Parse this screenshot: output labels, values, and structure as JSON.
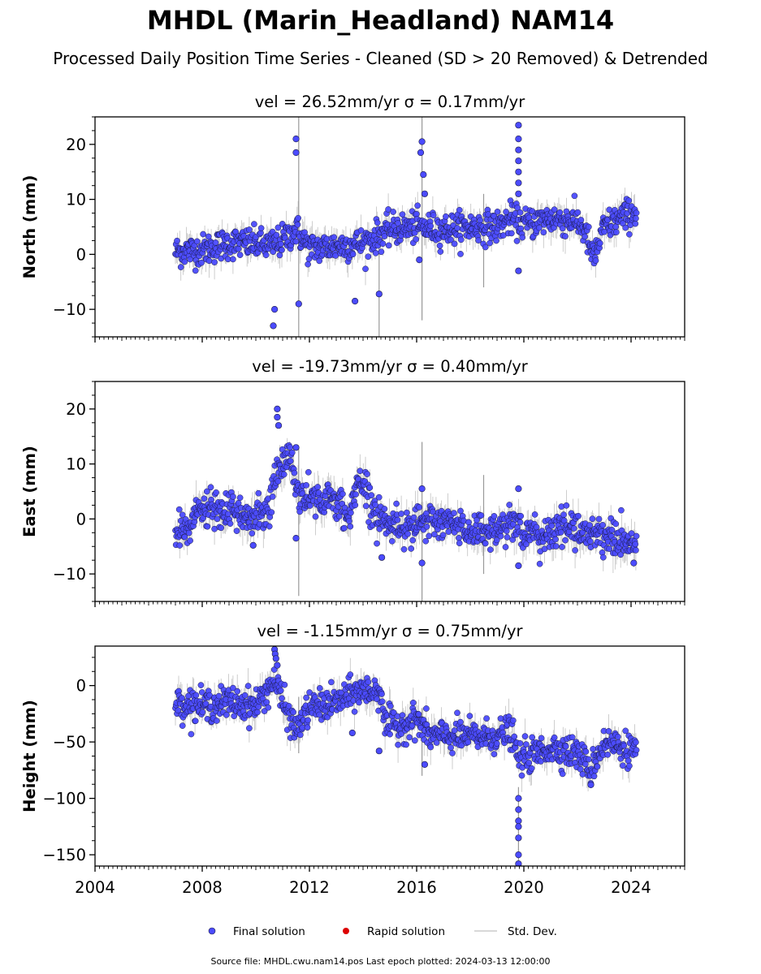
{
  "figure": {
    "title": "MHDL (Marin_Headland) NAM14",
    "subtitle": "Processed Daily Position Time Series - Cleaned (SD > 20 Removed) & Detrended",
    "footer": "Source file: MHDL.cwu.nam14.pos  Last epoch plotted: 2024-03-13 12:00:00"
  },
  "colors": {
    "final": "#4b4bff",
    "final_edge": "#1a1a40",
    "rapid": "#dd0000",
    "stddev": "#aaaaaa"
  },
  "legend": {
    "placement": "bottom-center",
    "items": [
      {
        "label": "Final solution",
        "marker": "circle",
        "color": "#4b4bff"
      },
      {
        "label": "Rapid solution",
        "marker": "circle",
        "color": "#dd0000"
      },
      {
        "label": "Std. Dev.",
        "marker": "line",
        "color": "#cccccc"
      }
    ]
  },
  "chart_data": [
    {
      "type": "scatter",
      "title_prefix": "vel = 26.52mm/yr",
      "title_sigma": "σ = 0.17mm/yr",
      "ylabel": "North (mm)",
      "xlabel": "",
      "xlim": [
        2004,
        2026
      ],
      "ylim": [
        -15,
        25
      ],
      "yticks": [
        -10,
        0,
        10,
        20
      ],
      "yminor": 2.5,
      "xticks": [
        2004,
        2008,
        2012,
        2016,
        2020,
        2024
      ],
      "show_xticklabels": false,
      "series_name": "Final solution",
      "trend": [
        [
          2007.0,
          0.5
        ],
        [
          2008.0,
          0.8
        ],
        [
          2009.0,
          2.0
        ],
        [
          2010.0,
          2.0
        ],
        [
          2010.5,
          1.5
        ],
        [
          2011.0,
          2.5
        ],
        [
          2011.5,
          4.5
        ],
        [
          2012.0,
          1.0
        ],
        [
          2013.0,
          1.5
        ],
        [
          2014.0,
          2.0
        ],
        [
          2015.0,
          4.5
        ],
        [
          2016.0,
          5.0
        ],
        [
          2017.0,
          4.5
        ],
        [
          2018.0,
          5.0
        ],
        [
          2019.0,
          5.0
        ],
        [
          2019.5,
          6.5
        ],
        [
          2020.0,
          5.5
        ],
        [
          2021.0,
          6.5
        ],
        [
          2022.0,
          6.0
        ],
        [
          2022.3,
          4.0
        ],
        [
          2022.6,
          -1.0
        ],
        [
          2023.0,
          5.0
        ],
        [
          2024.2,
          8.0
        ]
      ],
      "scatter": 1.4,
      "spikes": [
        [
          2011.5,
          21.0
        ],
        [
          2011.5,
          18.5
        ],
        [
          2010.65,
          -13.0
        ],
        [
          2010.7,
          -10.0
        ],
        [
          2011.6,
          -9.0
        ],
        [
          2013.7,
          -8.5
        ],
        [
          2014.6,
          -7.2
        ],
        [
          2016.2,
          20.5
        ],
        [
          2016.15,
          18.5
        ],
        [
          2016.25,
          14.5
        ],
        [
          2016.1,
          -1.0
        ],
        [
          2016.3,
          11.0
        ],
        [
          2019.8,
          23.5
        ],
        [
          2019.8,
          21.0
        ],
        [
          2019.8,
          19.0
        ],
        [
          2019.8,
          17.0
        ],
        [
          2019.8,
          15.0
        ],
        [
          2019.8,
          13.0
        ],
        [
          2019.8,
          11.0
        ],
        [
          2019.8,
          -3.0
        ]
      ],
      "error_spikes": [
        [
          2011.6,
          -15.0,
          25.0
        ],
        [
          2014.6,
          -15.0,
          2.0
        ],
        [
          2016.2,
          -12.0,
          25.0
        ],
        [
          2018.5,
          -6.0,
          11.0
        ]
      ]
    },
    {
      "type": "scatter",
      "title_prefix": "vel = -19.73mm/yr",
      "title_sigma": "σ = 0.40mm/yr",
      "ylabel": "East (mm)",
      "xlabel": "",
      "xlim": [
        2004,
        2026
      ],
      "ylim": [
        -15,
        25
      ],
      "yticks": [
        -10,
        0,
        10,
        20
      ],
      "yminor": 2.5,
      "xticks": [
        2004,
        2008,
        2012,
        2016,
        2020,
        2024
      ],
      "show_xticklabels": false,
      "series_name": "Final solution",
      "trend": [
        [
          2007.0,
          -3.0
        ],
        [
          2007.5,
          -1.5
        ],
        [
          2008.0,
          2.0
        ],
        [
          2009.0,
          1.0
        ],
        [
          2010.0,
          0.5
        ],
        [
          2010.5,
          1.0
        ],
        [
          2010.7,
          8.0
        ],
        [
          2011.0,
          10.0
        ],
        [
          2011.3,
          12.0
        ],
        [
          2011.5,
          5.0
        ],
        [
          2012.0,
          4.0
        ],
        [
          2013.0,
          3.0
        ],
        [
          2013.5,
          0.0
        ],
        [
          2013.8,
          8.0
        ],
        [
          2014.5,
          1.0
        ],
        [
          2015.0,
          -1.0
        ],
        [
          2016.0,
          -1.0
        ],
        [
          2017.0,
          -0.5
        ],
        [
          2018.0,
          -2.0
        ],
        [
          2019.0,
          -2.0
        ],
        [
          2019.8,
          0.0
        ],
        [
          2020.0,
          -3.0
        ],
        [
          2021.0,
          -3.0
        ],
        [
          2021.5,
          -1.0
        ],
        [
          2022.0,
          -2.0
        ],
        [
          2023.0,
          -3.0
        ],
        [
          2024.2,
          -5.0
        ]
      ],
      "scatter": 1.6,
      "spikes": [
        [
          2010.8,
          20.0
        ],
        [
          2010.8,
          18.5
        ],
        [
          2010.85,
          17.0
        ],
        [
          2011.5,
          13.0
        ],
        [
          2011.5,
          -3.5
        ],
        [
          2009.9,
          -4.8
        ],
        [
          2014.7,
          -7.0
        ],
        [
          2016.2,
          5.5
        ],
        [
          2016.2,
          -8.0
        ],
        [
          2019.8,
          5.5
        ],
        [
          2019.8,
          -8.5
        ],
        [
          2024.1,
          -8.0
        ]
      ],
      "error_spikes": [
        [
          2011.6,
          -14.0,
          13.0
        ],
        [
          2016.2,
          -15.0,
          14.0
        ],
        [
          2018.5,
          -10.0,
          8.0
        ]
      ]
    },
    {
      "type": "scatter",
      "title_prefix": "vel = -1.15mm/yr",
      "title_sigma": "σ = 0.75mm/yr",
      "ylabel": "Height (mm)",
      "xlabel": "",
      "xlim": [
        2004,
        2026
      ],
      "ylim": [
        -160,
        35
      ],
      "yticks": [
        -150,
        -100,
        -50,
        0
      ],
      "yminor": 12.5,
      "xticks": [
        2004,
        2008,
        2012,
        2016,
        2020,
        2024
      ],
      "show_xticklabels": true,
      "series_name": "Final solution",
      "trend": [
        [
          2007.0,
          -15.0
        ],
        [
          2008.0,
          -18.0
        ],
        [
          2009.0,
          -15.0
        ],
        [
          2010.0,
          -18.0
        ],
        [
          2010.7,
          5.0
        ],
        [
          2011.0,
          -15.0
        ],
        [
          2011.5,
          -40.0
        ],
        [
          2012.0,
          -20.0
        ],
        [
          2013.0,
          -15.0
        ],
        [
          2013.8,
          -5.0
        ],
        [
          2014.7,
          -5.0
        ],
        [
          2014.8,
          -35.0
        ],
        [
          2015.5,
          -35.0
        ],
        [
          2016.0,
          -30.0
        ],
        [
          2016.5,
          -45.0
        ],
        [
          2017.0,
          -45.0
        ],
        [
          2018.0,
          -45.0
        ],
        [
          2019.0,
          -45.0
        ],
        [
          2019.5,
          -40.0
        ],
        [
          2019.8,
          -65.0
        ],
        [
          2020.5,
          -60.0
        ],
        [
          2021.0,
          -55.0
        ],
        [
          2022.0,
          -60.0
        ],
        [
          2022.5,
          -75.0
        ],
        [
          2023.0,
          -50.0
        ],
        [
          2024.2,
          -58.0
        ]
      ],
      "scatter": 7.0,
      "spikes": [
        [
          2010.7,
          32.0
        ],
        [
          2010.72,
          28.0
        ],
        [
          2010.75,
          24.0
        ],
        [
          2010.8,
          18.0
        ],
        [
          2019.8,
          -100.0
        ],
        [
          2019.8,
          -110.0
        ],
        [
          2019.8,
          -120.0
        ],
        [
          2019.8,
          -125.0
        ],
        [
          2019.8,
          -135.0
        ],
        [
          2019.8,
          -150.0
        ],
        [
          2019.8,
          -158.0
        ],
        [
          2014.6,
          -58.0
        ],
        [
          2016.3,
          -70.0
        ],
        [
          2022.5,
          -88.0
        ],
        [
          2013.6,
          -42.0
        ]
      ],
      "error_spikes": [
        [
          2011.6,
          -60.0,
          -10.0
        ],
        [
          2016.2,
          -80.0,
          -20.0
        ],
        [
          2019.8,
          -160.0,
          -90.0
        ]
      ]
    }
  ],
  "x_tick_labels": [
    "2004",
    "2008",
    "2012",
    "2016",
    "2020",
    "2024"
  ]
}
